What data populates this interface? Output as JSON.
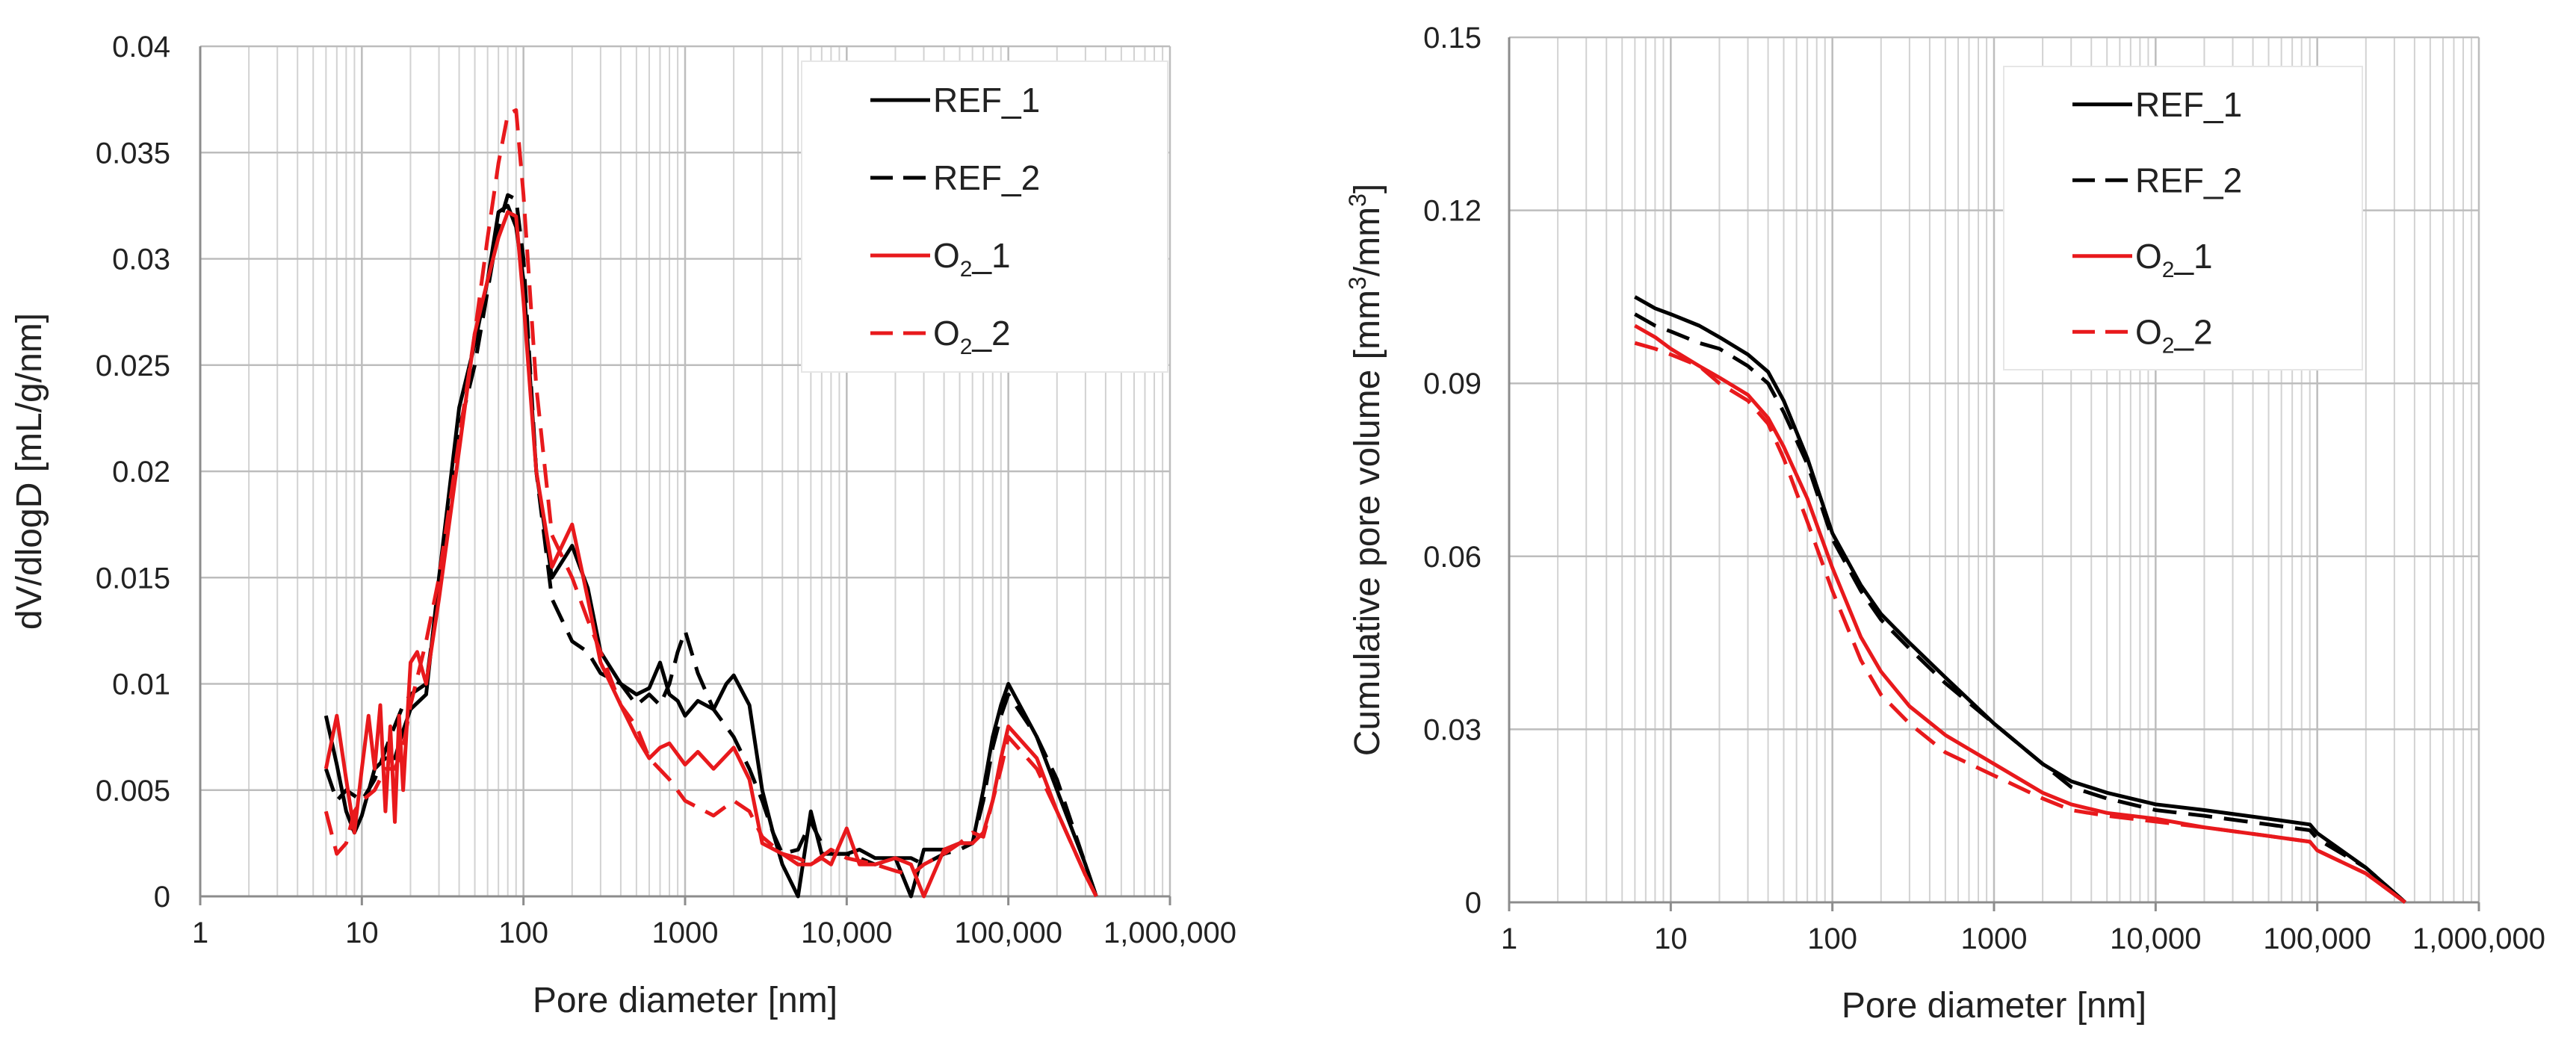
{
  "chart_data": [
    {
      "type": "line",
      "xscale": "log",
      "xlabel": "Pore diameter [nm]",
      "ylabel": "dV/dlogD   [mL/g/nm]",
      "xlim": [
        1,
        1000000
      ],
      "ylim": [
        0,
        0.04
      ],
      "xticks": [
        1,
        10,
        100,
        1000,
        10000,
        100000,
        1000000
      ],
      "xtick_labels": [
        "1",
        "10",
        "100",
        "1000",
        "10,000",
        "100,000",
        "1,000,000"
      ],
      "yticks": [
        0,
        0.005,
        0.01,
        0.015,
        0.02,
        0.025,
        0.03,
        0.035,
        0.04
      ],
      "ytick_labels": [
        "0",
        "0.005",
        "0.01",
        "0.015",
        "0.02",
        "0.025",
        "0.03",
        "0.035",
        "0.04"
      ],
      "legend": {
        "position": "top-right"
      },
      "series": [
        {
          "name": "REF_1",
          "name_base": "REF_1",
          "name_sub": "",
          "name_suffix": "",
          "color": "#000000",
          "dash": "solid",
          "x": [
            6,
            7,
            8,
            9,
            10,
            12,
            14,
            16,
            18,
            20,
            25,
            30,
            40,
            50,
            60,
            70,
            80,
            90,
            100,
            120,
            150,
            200,
            250,
            300,
            400,
            500,
            600,
            700,
            800,
            900,
            1000,
            1200,
            1500,
            1800,
            2000,
            2500,
            3000,
            3500,
            4000,
            5000,
            6000,
            7000,
            8000,
            10000,
            12000,
            15000,
            20000,
            25000,
            30000,
            40000,
            50000,
            60000,
            70000,
            80000,
            90000,
            100000,
            150000,
            200000,
            300000,
            350000
          ],
          "y": [
            0.0085,
            0.0062,
            0.004,
            0.003,
            0.0038,
            0.006,
            0.0065,
            0.0065,
            0.0078,
            0.0088,
            0.0095,
            0.015,
            0.023,
            0.026,
            0.029,
            0.0322,
            0.0325,
            0.0315,
            0.029,
            0.02,
            0.015,
            0.0165,
            0.0145,
            0.0115,
            0.01,
            0.0095,
            0.0098,
            0.011,
            0.0095,
            0.0092,
            0.0085,
            0.0092,
            0.0088,
            0.01,
            0.0104,
            0.009,
            0.005,
            0.003,
            0.0015,
            0.0,
            0.004,
            0.002,
            0.002,
            0.002,
            0.0022,
            0.0018,
            0.0018,
            0.0,
            0.0022,
            0.0022,
            0.0025,
            0.0025,
            0.005,
            0.0075,
            0.009,
            0.01,
            0.0075,
            0.005,
            0.0015,
            0.0
          ]
        },
        {
          "name": "REF_2",
          "name_base": "REF_2",
          "name_sub": "",
          "name_suffix": "",
          "color": "#000000",
          "dash": "dashed",
          "x": [
            6,
            7,
            8,
            10,
            12,
            15,
            18,
            20,
            25,
            30,
            40,
            50,
            60,
            70,
            80,
            90,
            100,
            120,
            150,
            200,
            250,
            300,
            400,
            500,
            600,
            700,
            800,
            900,
            1000,
            1200,
            1500,
            2000,
            2500,
            3000,
            3500,
            4000,
            5000,
            6000,
            7000,
            8000,
            10000,
            12000,
            15000,
            20000,
            25000,
            30000,
            40000,
            50000,
            60000,
            70000,
            80000,
            90000,
            100000,
            150000,
            200000,
            300000,
            350000
          ],
          "y": [
            0.006,
            0.0045,
            0.005,
            0.0045,
            0.0055,
            0.0075,
            0.009,
            0.0095,
            0.01,
            0.0145,
            0.022,
            0.025,
            0.0285,
            0.0315,
            0.033,
            0.0328,
            0.03,
            0.02,
            0.014,
            0.012,
            0.0115,
            0.0105,
            0.01,
            0.009,
            0.0095,
            0.009,
            0.01,
            0.0115,
            0.0125,
            0.0105,
            0.0088,
            0.0075,
            0.006,
            0.0045,
            0.003,
            0.002,
            0.0022,
            0.0035,
            0.0025,
            0.002,
            0.002,
            0.0018,
            0.0015,
            0.0018,
            0.0018,
            0.0015,
            0.002,
            0.0022,
            0.0025,
            0.0045,
            0.007,
            0.0085,
            0.0095,
            0.0075,
            0.0055,
            0.0015,
            0.0
          ]
        },
        {
          "name": "O₂_1",
          "name_base": "O",
          "name_sub": "2",
          "name_suffix": "_1",
          "color": "#e8191c",
          "dash": "solid",
          "x": [
            6,
            7,
            8,
            9,
            10,
            11,
            12,
            13,
            14,
            15,
            16,
            17,
            18,
            20,
            22,
            25,
            30,
            40,
            50,
            60,
            70,
            80,
            90,
            100,
            120,
            150,
            200,
            250,
            300,
            400,
            500,
            600,
            700,
            800,
            1000,
            1200,
            1500,
            2000,
            2500,
            3000,
            4000,
            5000,
            6000,
            7000,
            8000,
            10000,
            12000,
            15000,
            20000,
            25000,
            30000,
            40000,
            50000,
            60000,
            70000,
            80000,
            90000,
            100000,
            150000,
            200000,
            300000,
            350000
          ],
          "y": [
            0.006,
            0.0085,
            0.0055,
            0.003,
            0.006,
            0.0085,
            0.006,
            0.009,
            0.004,
            0.008,
            0.0035,
            0.0085,
            0.005,
            0.011,
            0.0115,
            0.01,
            0.014,
            0.021,
            0.0265,
            0.029,
            0.031,
            0.0322,
            0.032,
            0.028,
            0.02,
            0.0155,
            0.0175,
            0.014,
            0.011,
            0.009,
            0.0075,
            0.0065,
            0.007,
            0.0072,
            0.0062,
            0.0068,
            0.006,
            0.007,
            0.0055,
            0.0025,
            0.002,
            0.0015,
            0.0015,
            0.0018,
            0.0015,
            0.0032,
            0.0015,
            0.0015,
            0.0018,
            0.0015,
            0.0,
            0.0022,
            0.0025,
            0.0025,
            0.003,
            0.0045,
            0.0065,
            0.008,
            0.0065,
            0.004,
            0.001,
            0.0
          ]
        },
        {
          "name": "O₂_2",
          "name_base": "O",
          "name_sub": "2",
          "name_suffix": "_2",
          "color": "#e8191c",
          "dash": "dashed",
          "x": [
            6,
            7,
            8,
            9,
            10,
            12,
            14,
            16,
            18,
            20,
            25,
            30,
            40,
            50,
            60,
            70,
            80,
            90,
            100,
            120,
            150,
            200,
            250,
            300,
            400,
            500,
            600,
            800,
            1000,
            1500,
            2000,
            2500,
            3000,
            4000,
            5000,
            6000,
            8000,
            10000,
            15000,
            20000,
            25000,
            30000,
            40000,
            50000,
            60000,
            70000,
            80000,
            90000,
            100000,
            150000,
            200000,
            300000,
            350000
          ],
          "y": [
            0.004,
            0.002,
            0.0025,
            0.004,
            0.0045,
            0.005,
            0.006,
            0.006,
            0.007,
            0.009,
            0.012,
            0.015,
            0.0215,
            0.0265,
            0.031,
            0.0345,
            0.0368,
            0.037,
            0.033,
            0.024,
            0.017,
            0.015,
            0.013,
            0.0115,
            0.009,
            0.008,
            0.0065,
            0.0055,
            0.0045,
            0.0038,
            0.0045,
            0.004,
            0.0028,
            0.002,
            0.0018,
            0.0015,
            0.0022,
            0.0018,
            0.0015,
            0.0012,
            0.001,
            0.0015,
            0.002,
            0.0025,
            0.003,
            0.0028,
            0.0045,
            0.006,
            0.0075,
            0.006,
            0.004,
            0.001,
            0.0
          ]
        }
      ]
    },
    {
      "type": "line",
      "xscale": "log",
      "xlabel": "Pore diameter [nm]",
      "ylabel": "Cumulative pore volume [mm³/mm³]",
      "ylabel_main": "Cumulative pore volume [mm",
      "ylabel_sup1": "3",
      "ylabel_mid": "/mm",
      "ylabel_sup2": "3",
      "ylabel_end": "]",
      "xlim": [
        1,
        1000000
      ],
      "ylim": [
        0,
        0.15
      ],
      "xticks": [
        1,
        10,
        100,
        1000,
        10000,
        100000,
        1000000
      ],
      "xtick_labels": [
        "1",
        "10",
        "100",
        "1000",
        "10,000",
        "100,000",
        "1,000,000"
      ],
      "yticks": [
        0,
        0.03,
        0.06,
        0.09,
        0.12,
        0.15
      ],
      "ytick_labels": [
        "0",
        "0.03",
        "0.06",
        "0.09",
        "0.12",
        "0.15"
      ],
      "legend": {
        "position": "top-right"
      },
      "series": [
        {
          "name": "REF_1",
          "name_base": "REF_1",
          "name_sub": "",
          "name_suffix": "",
          "color": "#000000",
          "dash": "solid",
          "x": [
            6,
            8,
            10,
            15,
            20,
            30,
            40,
            50,
            70,
            100,
            150,
            200,
            300,
            500,
            1000,
            2000,
            3000,
            5000,
            10000,
            20000,
            50000,
            90000,
            100000,
            200000,
            350000
          ],
          "y": [
            0.105,
            0.103,
            0.102,
            0.1,
            0.098,
            0.095,
            0.092,
            0.087,
            0.077,
            0.064,
            0.055,
            0.05,
            0.045,
            0.039,
            0.031,
            0.024,
            0.021,
            0.019,
            0.017,
            0.016,
            0.0145,
            0.0135,
            0.012,
            0.006,
            0.0
          ]
        },
        {
          "name": "REF_2",
          "name_base": "REF_2",
          "name_sub": "",
          "name_suffix": "",
          "color": "#000000",
          "dash": "dashed",
          "x": [
            6,
            8,
            10,
            15,
            20,
            30,
            40,
            50,
            70,
            100,
            150,
            200,
            300,
            500,
            1000,
            2000,
            3000,
            5000,
            10000,
            20000,
            50000,
            90000,
            100000,
            200000,
            350000
          ],
          "y": [
            0.102,
            0.1,
            0.099,
            0.097,
            0.096,
            0.093,
            0.09,
            0.085,
            0.076,
            0.063,
            0.054,
            0.049,
            0.044,
            0.038,
            0.031,
            0.024,
            0.02,
            0.018,
            0.016,
            0.015,
            0.0135,
            0.0125,
            0.011,
            0.006,
            0.0
          ]
        },
        {
          "name": "O₂_1",
          "name_base": "O",
          "name_sub": "2",
          "name_suffix": "_1",
          "color": "#e8191c",
          "dash": "solid",
          "x": [
            6,
            8,
            10,
            15,
            20,
            30,
            40,
            50,
            70,
            100,
            150,
            200,
            300,
            500,
            1000,
            2000,
            3000,
            5000,
            10000,
            20000,
            50000,
            90000,
            100000,
            200000,
            350000
          ],
          "y": [
            0.1,
            0.098,
            0.096,
            0.093,
            0.091,
            0.088,
            0.084,
            0.079,
            0.07,
            0.058,
            0.046,
            0.04,
            0.034,
            0.029,
            0.024,
            0.019,
            0.017,
            0.0155,
            0.0145,
            0.013,
            0.0115,
            0.0105,
            0.009,
            0.005,
            0.0
          ]
        },
        {
          "name": "O₂_2",
          "name_base": "O",
          "name_sub": "2",
          "name_suffix": "_2",
          "color": "#e8191c",
          "dash": "dashed",
          "x": [
            6,
            8,
            10,
            15,
            20,
            30,
            40,
            50,
            70,
            100,
            150,
            200,
            300,
            500,
            1000,
            2000,
            3000,
            5000,
            10000,
            20000,
            50000,
            90000,
            100000,
            200000,
            350000
          ],
          "y": [
            0.097,
            0.096,
            0.095,
            0.093,
            0.09,
            0.087,
            0.083,
            0.077,
            0.066,
            0.054,
            0.042,
            0.036,
            0.031,
            0.026,
            0.022,
            0.018,
            0.016,
            0.015,
            0.014,
            0.013,
            0.0115,
            0.0105,
            0.009,
            0.005,
            0.0
          ]
        }
      ]
    }
  ]
}
